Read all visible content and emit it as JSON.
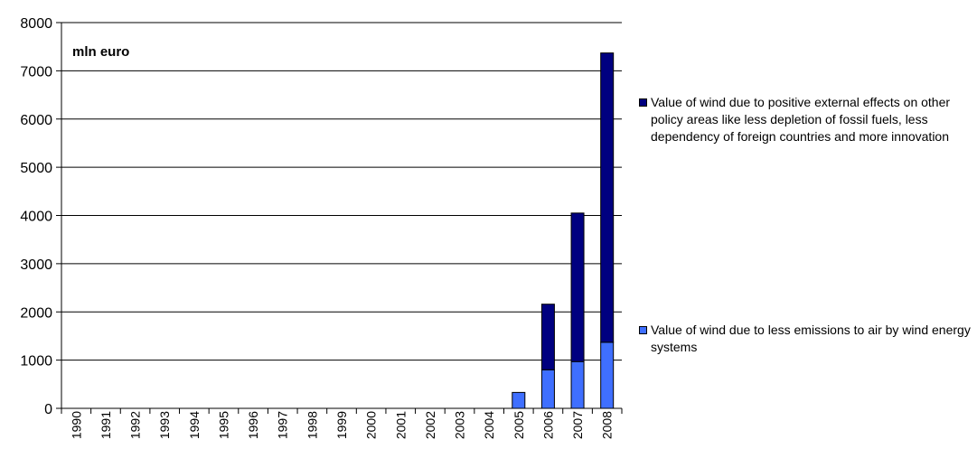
{
  "chart_data": {
    "type": "bar",
    "stacked": true,
    "annotation": "mln euro",
    "categories": [
      "1990",
      "1991",
      "1992",
      "1993",
      "1994",
      "1995",
      "1996",
      "1997",
      "1998",
      "1999",
      "2000",
      "2001",
      "2002",
      "2003",
      "2004",
      "2005",
      "2006",
      "2007",
      "2008"
    ],
    "series": [
      {
        "name": "Value of wind due to less emissions to air by wind energy systems",
        "color": "#3f6fff",
        "values": [
          0,
          0,
          0,
          0,
          0,
          0,
          0,
          0,
          0,
          0,
          0,
          0,
          0,
          0,
          0,
          330,
          800,
          970,
          1370
        ]
      },
      {
        "name": "Value of wind due to positive external effects on other policy areas like less depletion of fossil fuels, less dependency of foreign countries and more innovation",
        "color": "#000080",
        "values": [
          0,
          0,
          0,
          0,
          0,
          0,
          0,
          0,
          0,
          0,
          0,
          0,
          0,
          0,
          0,
          0,
          1360,
          3080,
          6000
        ]
      }
    ],
    "ylim": [
      0,
      8000
    ],
    "yticks": [
      0,
      1000,
      2000,
      3000,
      4000,
      5000,
      6000,
      7000,
      8000
    ],
    "grid": true,
    "legend_position": "right"
  }
}
